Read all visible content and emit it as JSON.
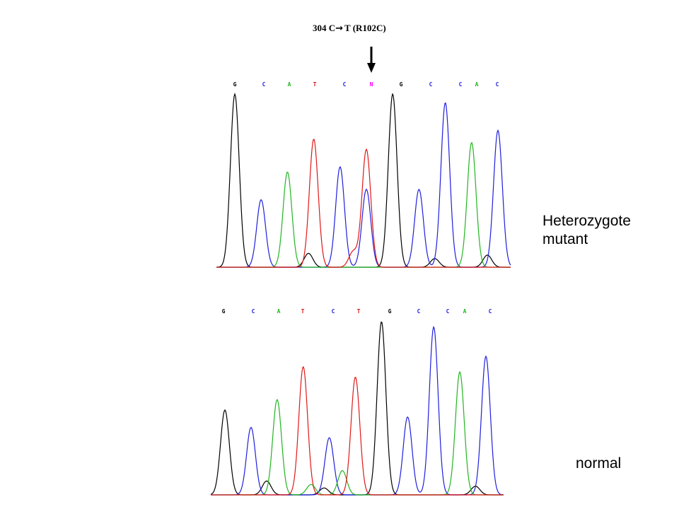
{
  "annotation": {
    "pre": "304 C",
    "arrow_glyph": "→",
    "post": "T (R102C)"
  },
  "labels": {
    "top_line1": "Heterozygote",
    "top_line2": "mutant",
    "bottom": "normal"
  },
  "colors": {
    "G": "#000000",
    "C": "#1f1fdd",
    "A": "#22b522",
    "T": "#e01818",
    "N": "#ff00ff"
  },
  "chart_data": [
    {
      "type": "line",
      "title": "Heterozygote mutant",
      "bases": [
        "G",
        "C",
        "A",
        "T",
        "C",
        "N",
        "G",
        "C",
        "C",
        "A",
        "C"
      ],
      "base_colors": [
        "G",
        "C",
        "A",
        "T",
        "C",
        "N",
        "G",
        "C",
        "C",
        "A",
        "C"
      ],
      "peaks": [
        {
          "channel": "G",
          "pos": 1,
          "height": 1.0
        },
        {
          "channel": "C",
          "pos": 2,
          "height": 0.39
        },
        {
          "channel": "A",
          "pos": 3,
          "height": 0.55
        },
        {
          "channel": "T",
          "pos": 4,
          "height": 0.74
        },
        {
          "channel": "C",
          "pos": 5,
          "height": 0.58
        },
        {
          "channel": "T",
          "pos": 6,
          "height": 0.68
        },
        {
          "channel": "C",
          "pos": 6,
          "height": 0.45
        },
        {
          "channel": "G",
          "pos": 7,
          "height": 1.0
        },
        {
          "channel": "C",
          "pos": 8,
          "height": 0.45
        },
        {
          "channel": "C",
          "pos": 9,
          "height": 0.95
        },
        {
          "channel": "A",
          "pos": 10,
          "height": 0.72
        },
        {
          "channel": "C",
          "pos": 11,
          "height": 0.79
        },
        {
          "channel": "G",
          "pos": 3.8,
          "height": 0.08
        },
        {
          "channel": "T",
          "pos": 5.5,
          "height": 0.09
        },
        {
          "channel": "G",
          "pos": 8.6,
          "height": 0.05
        },
        {
          "channel": "G",
          "pos": 10.6,
          "height": 0.07
        }
      ]
    },
    {
      "type": "line",
      "title": "normal",
      "bases": [
        "G",
        "C",
        "A",
        "T",
        "C",
        "T",
        "G",
        "C",
        "C",
        "A",
        "C"
      ],
      "base_colors": [
        "G",
        "C",
        "A",
        "T",
        "C",
        "T",
        "G",
        "C",
        "C",
        "A",
        "C"
      ],
      "peaks": [
        {
          "channel": "G",
          "pos": 1,
          "height": 0.49
        },
        {
          "channel": "C",
          "pos": 2,
          "height": 0.39
        },
        {
          "channel": "A",
          "pos": 3,
          "height": 0.55
        },
        {
          "channel": "T",
          "pos": 4,
          "height": 0.74
        },
        {
          "channel": "C",
          "pos": 5,
          "height": 0.33
        },
        {
          "channel": "T",
          "pos": 6,
          "height": 0.68
        },
        {
          "channel": "G",
          "pos": 7,
          "height": 1.0
        },
        {
          "channel": "C",
          "pos": 8,
          "height": 0.45
        },
        {
          "channel": "C",
          "pos": 9,
          "height": 0.97
        },
        {
          "channel": "A",
          "pos": 10,
          "height": 0.71
        },
        {
          "channel": "C",
          "pos": 11,
          "height": 0.8
        },
        {
          "channel": "G",
          "pos": 2.6,
          "height": 0.08
        },
        {
          "channel": "A",
          "pos": 4.3,
          "height": 0.06
        },
        {
          "channel": "A",
          "pos": 5.5,
          "height": 0.14
        },
        {
          "channel": "G",
          "pos": 4.8,
          "height": 0.04
        },
        {
          "channel": "G",
          "pos": 10.6,
          "height": 0.05
        }
      ]
    }
  ]
}
